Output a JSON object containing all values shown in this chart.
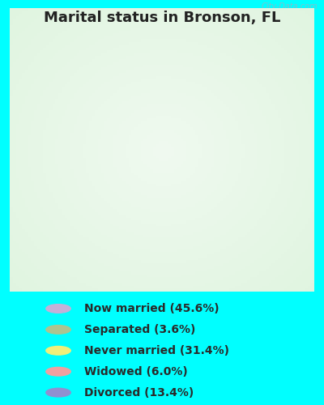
{
  "title": "Marital status in Bronson, FL",
  "categories": [
    "Now married",
    "Separated",
    "Never married",
    "Widowed",
    "Divorced"
  ],
  "values": [
    45.6,
    3.6,
    31.4,
    6.0,
    13.4
  ],
  "colors": [
    "#c4b0d8",
    "#adc490",
    "#f0f07a",
    "#f0a0a0",
    "#9090d0"
  ],
  "legend_labels": [
    "Now married (45.6%)",
    "Separated (3.6%)",
    "Never married (31.4%)",
    "Widowed (6.0%)",
    "Divorced (13.4%)"
  ],
  "bg_outer": "#00FFFF",
  "bg_chart_center": "#d8eed8",
  "bg_chart_edge": "#f0faf0",
  "watermark": "City-Data.com",
  "title_fontsize": 13,
  "legend_fontsize": 10,
  "donut_width": 0.38
}
